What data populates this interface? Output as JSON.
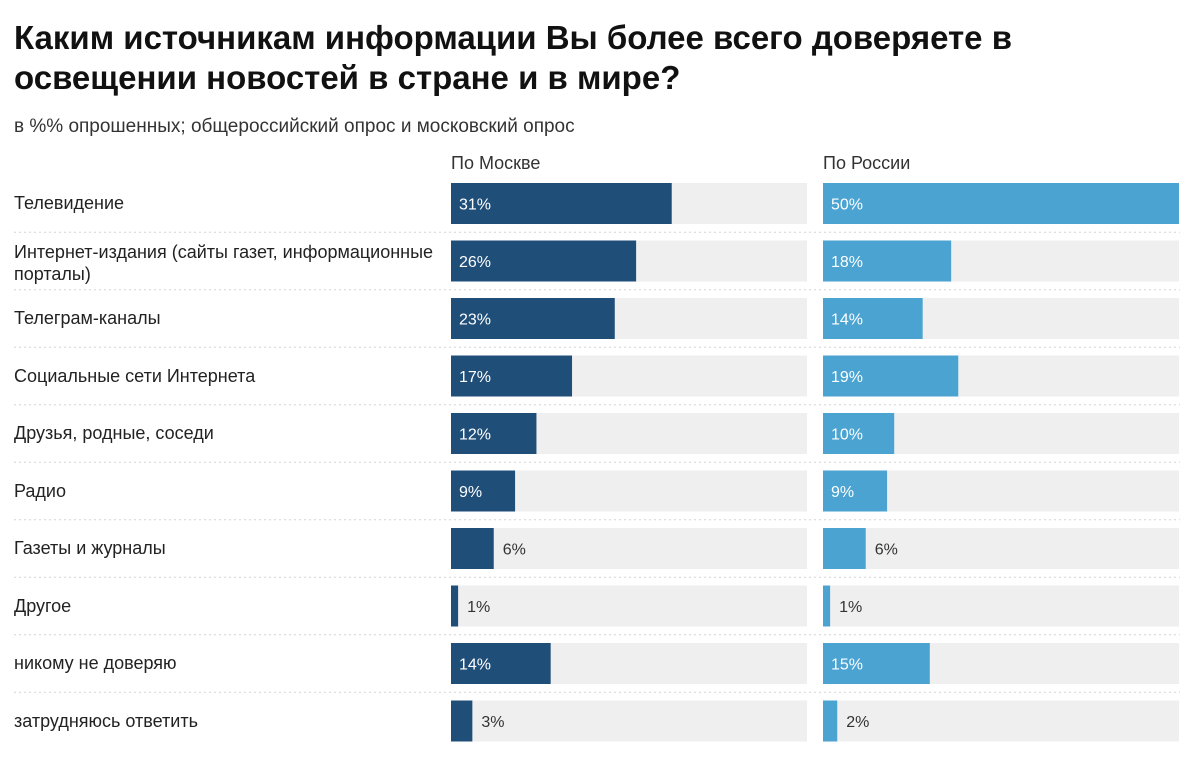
{
  "title": "Каким источникам информации Вы более всего доверяете в освещении новостей в стране и в мире?",
  "subtitle": "в %% опрошенных; общероссийский опрос и московский опрос",
  "colors": {
    "moscow": "#1f4e79",
    "russia": "#4aa3d1",
    "track": "#efefef",
    "label_on_bar": "#ffffff",
    "label_off_bar": "#333333"
  },
  "chart_data": {
    "type": "bar",
    "orientation": "horizontal",
    "categories": [
      "Телевидение",
      "Интернет-издания (сайты газет, информационные порталы)",
      "Телеграм-каналы",
      "Социальные сети Интернета",
      "Друзья, родные, соседи",
      "Радио",
      "Газеты и журналы",
      "Другое",
      "никому не доверяю",
      "затрудняюсь ответить"
    ],
    "series": [
      {
        "name": "По Москве",
        "values": [
          31,
          26,
          23,
          17,
          12,
          9,
          6,
          1,
          14,
          3
        ],
        "labels": [
          "31%",
          "26%",
          "23%",
          "17%",
          "12%",
          "9%",
          "6%",
          "1%",
          "14%",
          "3%"
        ]
      },
      {
        "name": "По России",
        "values": [
          50,
          18,
          14,
          19,
          10,
          9,
          6,
          1,
          15,
          2
        ],
        "labels": [
          "50%",
          "18%",
          "14%",
          "19%",
          "10%",
          "9%",
          "6%",
          "1%",
          "15%",
          "2%"
        ]
      }
    ],
    "xlim": [
      0,
      50
    ],
    "grid": false,
    "legend": "column headers above each panel"
  }
}
